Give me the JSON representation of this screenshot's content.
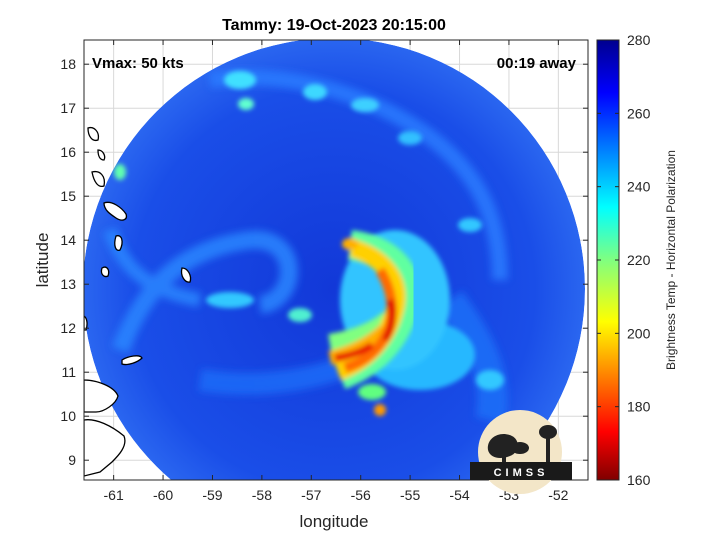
{
  "chart_data": {
    "type": "heatmap",
    "title": "Tammy: 19-Oct-2023 20:15:00",
    "annotations": {
      "vmax": "Vmax: 50 kts",
      "time_away": "00:19 away"
    },
    "xlabel": "longitude",
    "ylabel": "latitude",
    "xlim": [
      -61.6,
      -51.4
    ],
    "ylim": [
      8.55,
      18.55
    ],
    "x_ticks": [
      -61,
      -60,
      -59,
      -58,
      -57,
      -56,
      -55,
      -54,
      -53,
      -52
    ],
    "y_ticks": [
      9,
      10,
      11,
      12,
      13,
      14,
      15,
      16,
      17,
      18
    ],
    "grid": true,
    "colorbar": {
      "label": "Brightness Temp - Horizontal Polarization",
      "range": [
        160,
        280
      ],
      "ticks": [
        160,
        180,
        200,
        220,
        240,
        260,
        280
      ],
      "colormap": "jet"
    },
    "logo_text": "CIMSS",
    "storm_center": {
      "lon": -56.8,
      "lat": 13.4
    }
  },
  "colors": {
    "background": "#ffffff",
    "swath_base": "#1540e0",
    "coastline": "#000000",
    "grid": "#d8d8d8"
  }
}
